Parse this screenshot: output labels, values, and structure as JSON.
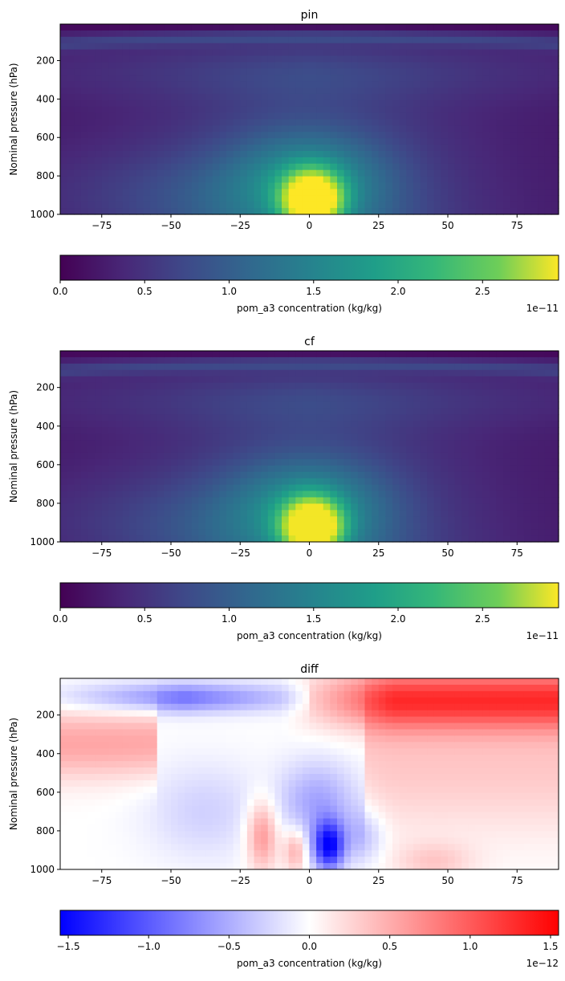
{
  "chart_data": [
    {
      "type": "heatmap",
      "title": "pin",
      "xlabel": "",
      "ylabel": "Nominal pressure (hPa)",
      "xlim": [
        -90,
        90
      ],
      "ylim": [
        1000,
        10
      ],
      "xticks": [
        "−75",
        "−50",
        "−25",
        "0",
        "25",
        "50",
        "75"
      ],
      "xtick_values": [
        -75,
        -50,
        -25,
        0,
        25,
        50,
        75
      ],
      "yticks": [
        "200",
        "400",
        "600",
        "800",
        "1000"
      ],
      "ytick_values": [
        200,
        400,
        600,
        800,
        1000
      ],
      "colormap": "viridis",
      "colorbar": {
        "label": "pom_a3 concentration (kg/kg)",
        "range": [
          0,
          2.95e-11
        ],
        "ticks": [
          "0.0",
          "0.5",
          "1.0",
          "1.5",
          "2.0",
          "2.5"
        ],
        "tick_values": [
          0,
          0.5,
          1.0,
          1.5,
          2.0,
          2.5
        ],
        "offset": "1e−11"
      }
    },
    {
      "type": "heatmap",
      "title": "cf",
      "xlabel": "",
      "ylabel": "Nominal pressure (hPa)",
      "xlim": [
        -90,
        90
      ],
      "ylim": [
        1000,
        10
      ],
      "xticks": [
        "−75",
        "−50",
        "−25",
        "0",
        "25",
        "50",
        "75"
      ],
      "xtick_values": [
        -75,
        -50,
        -25,
        0,
        25,
        50,
        75
      ],
      "yticks": [
        "200",
        "400",
        "600",
        "800",
        "1000"
      ],
      "ytick_values": [
        200,
        400,
        600,
        800,
        1000
      ],
      "colormap": "viridis",
      "colorbar": {
        "label": "pom_a3 concentration (kg/kg)",
        "range": [
          0,
          2.95e-11
        ],
        "ticks": [
          "0.0",
          "0.5",
          "1.0",
          "1.5",
          "2.0",
          "2.5"
        ],
        "tick_values": [
          0,
          0.5,
          1.0,
          1.5,
          2.0,
          2.5
        ],
        "offset": "1e−11"
      }
    },
    {
      "type": "heatmap",
      "title": "diff",
      "xlabel": "",
      "ylabel": "Nominal pressure (hPa)",
      "xlim": [
        -90,
        90
      ],
      "ylim": [
        1000,
        10
      ],
      "xticks": [
        "−75",
        "−50",
        "−25",
        "0",
        "25",
        "50",
        "75"
      ],
      "xtick_values": [
        -75,
        -50,
        -25,
        0,
        25,
        50,
        75
      ],
      "yticks": [
        "200",
        "400",
        "600",
        "800",
        "1000"
      ],
      "ytick_values": [
        200,
        400,
        600,
        800,
        1000
      ],
      "colormap": "bwr",
      "colorbar": {
        "label": "pom_a3 concentration (kg/kg)",
        "range": [
          -1.55e-12,
          1.55e-12
        ],
        "ticks": [
          "−1.5",
          "−1.0",
          "−0.5",
          "0.0",
          "0.5",
          "1.0",
          "1.5"
        ],
        "tick_values": [
          -1.5,
          -1.0,
          -0.5,
          0.0,
          0.5,
          1.0,
          1.5
        ],
        "offset": "1e−12"
      }
    }
  ]
}
